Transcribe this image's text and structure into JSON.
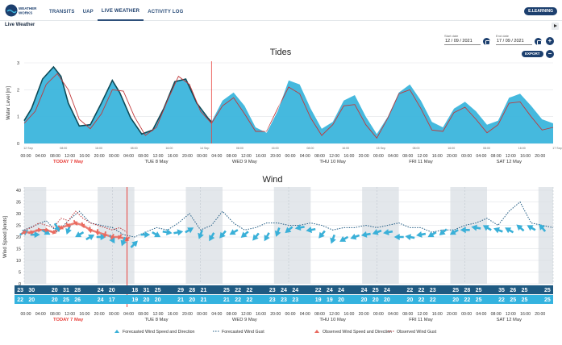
{
  "app": {
    "logo_text": "WEATHER WORKS",
    "nav": [
      {
        "label": "TRANSITS"
      },
      {
        "label": "UAP"
      },
      {
        "label": "LIVE WEATHER",
        "active": true
      },
      {
        "label": "ACTIVITY LOG"
      }
    ],
    "elearning_label": "E.LEARNING"
  },
  "page": {
    "title": "Live Weather",
    "start_date_label": "Start date",
    "start_date": "12 / 09 / 2021",
    "end_date_label": "End date",
    "end_date": "17 / 09 / 2021",
    "export_label": "EXPORT",
    "plus_label": "+",
    "minus_label": "−"
  },
  "colors": {
    "nav": "#2d4f7a",
    "brand_dark": "#1c3f6e",
    "tide_fill": "#3bb5dc",
    "tide_line": "#0e4a57",
    "tide_red": "#c0393b",
    "now_line": "#e8413c",
    "night_band": "#e3e7eb",
    "wind_forecast": "#3ab0d8",
    "wind_observed": "#e96a5f",
    "row_dark": "#1f5a82",
    "row_light": "#34b3df"
  },
  "time_axis": {
    "labels": [
      "00:00",
      "04:00",
      "08:00",
      "12:00",
      "16:00",
      "20:00"
    ],
    "days": [
      "TODAY 7 May",
      "TUE 8 May",
      "WED 9 May",
      "THU 10 May",
      "FRI 11 May",
      "SAT 12 May"
    ],
    "today_index": 0
  },
  "tides": {
    "title": "Tides",
    "ylabel": "Water Level [m]",
    "yticks": [
      "0",
      "1",
      "2",
      "3"
    ],
    "small_x_labels": [
      "12 Sep",
      "08:00",
      "16:00",
      "08:00",
      "16:00",
      "14 Sep",
      "08:00",
      "16:00",
      "08:00",
      "16:00",
      "15 Sep",
      "08:00",
      "16:00",
      "08:00",
      "16:00",
      "17 Sep"
    ]
  },
  "wind": {
    "title": "Wind",
    "ylabel": "Wind Speed [knots]",
    "yticks": [
      "0",
      "5",
      "10",
      "15",
      "20",
      "25",
      "30",
      "35",
      "40"
    ],
    "gust_row": [
      "23",
      "30",
      "",
      "20",
      "31",
      "28",
      "",
      "24",
      "20",
      "",
      "18",
      "31",
      "25",
      "",
      "29",
      "28",
      "21",
      "",
      "25",
      "22",
      "22",
      "",
      "23",
      "24",
      "24",
      "",
      "22",
      "24",
      "24",
      "",
      "24",
      "25",
      "24",
      "",
      "22",
      "22",
      "23",
      "",
      "25",
      "28",
      "25",
      "",
      "35",
      "26",
      "25",
      "",
      "25"
    ],
    "speed_row": [
      "22",
      "20",
      "",
      "20",
      "25",
      "26",
      "",
      "24",
      "17",
      "",
      "19",
      "20",
      "20",
      "",
      "21",
      "20",
      "21",
      "",
      "21",
      "22",
      "22",
      "",
      "23",
      "23",
      "23",
      "",
      "19",
      "19",
      "20",
      "",
      "20",
      "20",
      "20",
      "",
      "20",
      "22",
      "22",
      "",
      "20",
      "22",
      "25",
      "",
      "22",
      "25",
      "25",
      "",
      "25"
    ],
    "legend": [
      {
        "label": "Forecasted Wind Speed and Direction",
        "type": "forecast-arrow"
      },
      {
        "label": "Forecasted Wind Gust",
        "type": "forecast-gust"
      },
      {
        "label": "Observed Wind Speed and Direction",
        "type": "observed-arrow"
      },
      {
        "label": "Observed Wind Gust",
        "type": "observed-gust"
      }
    ]
  },
  "chart_data": [
    {
      "type": "area",
      "title": "Tides",
      "ylabel": "Water Level [m]",
      "ylim": [
        0,
        3
      ],
      "x_range_hours": [
        0,
        144
      ],
      "now_hour": 51,
      "series": [
        {
          "name": "",
          "kind": "observed-line",
          "x": [
            0,
            2,
            5,
            8,
            10,
            12,
            15,
            18,
            21,
            24,
            26,
            29,
            32,
            35,
            38,
            41,
            44,
            47,
            50,
            51
          ],
          "y": [
            0.85,
            1.3,
            2.4,
            2.85,
            2.5,
            1.5,
            0.65,
            0.7,
            1.5,
            2.35,
            1.9,
            0.95,
            0.35,
            0.5,
            1.3,
            2.3,
            2.4,
            1.5,
            0.95,
            0.8
          ]
        },
        {
          "name": "",
          "kind": "forecast-area",
          "x": [
            51,
            54,
            57,
            60,
            63,
            66,
            69,
            72,
            75,
            78,
            81,
            84,
            87,
            90,
            93,
            96,
            99,
            102,
            105,
            108,
            111,
            114,
            117,
            120,
            123,
            126,
            129,
            132,
            135,
            138,
            141,
            144
          ],
          "y": [
            0.9,
            1.6,
            1.9,
            1.4,
            0.6,
            0.4,
            1.2,
            2.35,
            2.2,
            1.3,
            0.55,
            0.8,
            1.6,
            1.8,
            1.0,
            0.35,
            1.0,
            1.9,
            2.2,
            1.6,
            0.8,
            0.6,
            1.3,
            1.55,
            1.2,
            0.7,
            0.85,
            1.7,
            1.85,
            1.4,
            0.9,
            0.75
          ]
        },
        {
          "name": "",
          "kind": "red-line",
          "x": [
            0,
            3,
            6,
            9,
            12,
            15,
            18,
            21,
            24,
            27,
            30,
            33,
            36,
            39,
            42,
            45,
            48,
            51,
            54,
            57,
            60,
            63,
            66,
            69,
            72,
            75,
            78,
            81,
            84,
            87,
            90,
            93,
            96,
            99,
            102,
            105,
            108,
            111,
            114,
            117,
            120,
            123,
            126,
            129,
            132,
            135,
            138,
            141,
            144
          ],
          "y": [
            0.75,
            1.2,
            2.2,
            2.6,
            2.0,
            0.9,
            0.55,
            1.1,
            2.0,
            1.95,
            1.0,
            0.3,
            0.6,
            1.6,
            2.5,
            2.2,
            1.2,
            0.75,
            1.4,
            1.7,
            1.1,
            0.45,
            0.45,
            1.3,
            2.1,
            1.85,
            0.95,
            0.3,
            0.7,
            1.4,
            1.45,
            0.7,
            0.2,
            0.95,
            1.85,
            2.0,
            1.3,
            0.5,
            0.45,
            1.15,
            1.35,
            0.9,
            0.4,
            0.7,
            1.5,
            1.55,
            1.0,
            0.5,
            0.6
          ]
        }
      ]
    },
    {
      "type": "line",
      "title": "Wind",
      "ylabel": "Wind Speed [knots]",
      "ylim": [
        0,
        40
      ],
      "x_range_hours": [
        0,
        144
      ],
      "now_hour": 28,
      "night_bands_hours": [
        [
          0,
          6
        ],
        [
          20,
          30
        ],
        [
          44,
          54
        ],
        [
          68,
          78
        ],
        [
          92,
          102
        ],
        [
          116,
          126
        ],
        [
          140,
          144
        ]
      ],
      "series": [
        {
          "name": "Forecasted Wind Gust",
          "kind": "forecast-gust",
          "x": [
            0,
            3,
            6,
            9,
            12,
            15,
            18,
            21,
            24,
            27,
            30,
            33,
            36,
            39,
            42,
            45,
            48,
            51,
            54,
            57,
            60,
            63,
            66,
            69,
            72,
            75,
            78,
            81,
            84,
            87,
            90,
            93,
            96,
            99,
            102,
            105,
            108,
            111,
            114,
            117,
            120,
            123,
            126,
            129,
            132,
            135,
            138,
            141,
            144
          ],
          "y": [
            23,
            25,
            27,
            22,
            27,
            31,
            26,
            25,
            24,
            21,
            20,
            22,
            24,
            23,
            26,
            30,
            23,
            25,
            31,
            26,
            23,
            24,
            26,
            26,
            25,
            25,
            26,
            25,
            23,
            24,
            24,
            25,
            24,
            25,
            26,
            24,
            24,
            22,
            23,
            23,
            25,
            26,
            28,
            25,
            31,
            35,
            26,
            25,
            24
          ]
        },
        {
          "name": "Forecasted Wind Speed and Direction",
          "kind": "forecast-arrows",
          "x": [
            0,
            3,
            6,
            9,
            12,
            15,
            18,
            21,
            24,
            27,
            30,
            33,
            36,
            39,
            42,
            45,
            48,
            51,
            54,
            57,
            60,
            63,
            66,
            69,
            72,
            75,
            78,
            81,
            84,
            87,
            90,
            93,
            96,
            99,
            102,
            105,
            108,
            111,
            114,
            117,
            120,
            123,
            126,
            129,
            132,
            135,
            138,
            141
          ],
          "y": [
            22,
            21,
            22,
            24,
            23,
            21,
            20,
            20,
            19,
            18,
            17,
            21,
            21,
            22,
            22,
            23,
            21,
            20,
            21,
            22,
            21,
            20,
            20,
            22,
            23,
            24,
            23,
            21,
            19,
            19,
            20,
            21,
            22,
            22,
            20,
            20,
            21,
            21,
            22,
            22,
            23,
            24,
            24,
            23,
            23,
            24,
            24,
            24
          ],
          "direction_deg": [
            60,
            90,
            120,
            150,
            200,
            240,
            60,
            90,
            150,
            200,
            45,
            90,
            120,
            100,
            80,
            60,
            200,
            210,
            220,
            240,
            230,
            220,
            210,
            200,
            230,
            260,
            260,
            220,
            200,
            240,
            250,
            260,
            250,
            260,
            270,
            280,
            260,
            240,
            230,
            240,
            270,
            280,
            300,
            290,
            300,
            310,
            300,
            320
          ]
        },
        {
          "name": "Observed Wind Gust",
          "kind": "observed-gust",
          "x": [
            0,
            2,
            4,
            6,
            8,
            10,
            12,
            14,
            16,
            18,
            20,
            22,
            24,
            26,
            28
          ],
          "y": [
            23,
            24,
            26,
            25,
            24,
            28,
            27,
            31,
            28,
            26,
            25,
            24,
            23,
            24,
            22
          ]
        },
        {
          "name": "Observed Wind Speed and Direction",
          "kind": "observed-arrows",
          "x": [
            0,
            2,
            4,
            6,
            8,
            10,
            12,
            14,
            16,
            18,
            20,
            22,
            24,
            26,
            28
          ],
          "y": [
            22,
            22,
            23,
            23,
            22,
            24,
            25,
            26,
            25,
            23,
            22,
            21,
            20,
            20,
            19
          ]
        }
      ]
    }
  ]
}
